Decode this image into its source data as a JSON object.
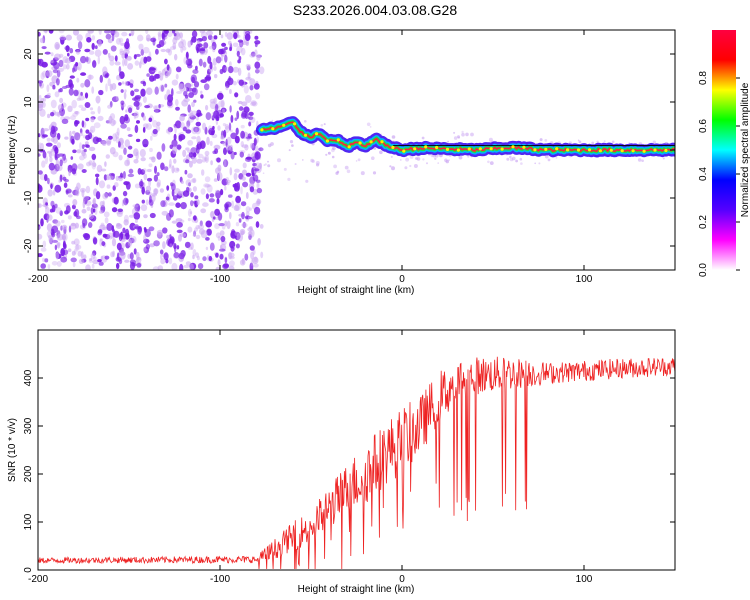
{
  "title": "S233.2026.004.03.08.G28",
  "colors": {
    "snr_line": "#ee2222",
    "dots_primary": "#7a1fe6",
    "dots_light": "#c9a3f2",
    "track_line": "#000000",
    "colormap": [
      "#ffffff",
      "#ff00ff",
      "#5500ff",
      "#0000ff",
      "#00ffff",
      "#00ff00",
      "#ffff00",
      "#ff0000",
      "#ff0040"
    ]
  },
  "chart_data": [
    {
      "type": "heatmap",
      "xlabel": "Height of straight line (km)",
      "ylabel": "Frequency (Hz)",
      "xlim": [
        -200,
        150
      ],
      "ylim": [
        -25,
        25
      ],
      "xticks": [
        "-200",
        "-100",
        "0",
        "100"
      ],
      "yticks": [
        "-20",
        "-10",
        "0",
        "10",
        "20"
      ],
      "noise_region_x": [
        -200,
        -77
      ],
      "track": {
        "x": [
          -77,
          -70,
          -60,
          -55,
          -50,
          -45,
          -40,
          -35,
          -30,
          -25,
          -20,
          -15,
          -10,
          -5,
          0,
          10,
          20,
          40,
          60,
          80,
          100,
          120,
          150
        ],
        "y": [
          4.2,
          4.5,
          5.7,
          3.5,
          2.8,
          3.5,
          1.8,
          2.0,
          0.6,
          1.6,
          0.6,
          2.4,
          1.2,
          0.5,
          0.0,
          0.4,
          0.3,
          0.0,
          0.5,
          0.0,
          0.0,
          0.0,
          0.0
        ]
      },
      "colorbar": {
        "label": "Normalized spectral amplitude",
        "range": [
          0,
          1
        ],
        "ticks": [
          "0.0",
          "0.2",
          "0.4",
          "0.6",
          "0.8"
        ]
      }
    },
    {
      "type": "line",
      "xlabel": "Height of straight line (km)",
      "ylabel": "SNR (10 * v/v)",
      "xlim": [
        -200,
        150
      ],
      "ylim": [
        0,
        500
      ],
      "xticks": [
        "-200",
        "-100",
        "0",
        "100"
      ],
      "yticks": [
        "0",
        "100",
        "200",
        "300",
        "400"
      ],
      "series": [
        {
          "name": "SNR",
          "trend": {
            "x": [
              -200,
              -80,
              -75,
              -60,
              -50,
              -40,
              -30,
              -20,
              -10,
              0,
              10,
              20,
              30,
              40,
              60,
              80,
              100,
              120,
              150
            ],
            "y": [
              20,
              22,
              30,
              70,
              90,
              130,
              170,
              200,
              240,
              270,
              300,
              360,
              390,
              405,
              410,
              410,
              415,
              420,
              425
            ]
          },
          "spread": {
            "x": [
              -200,
              -80,
              -75,
              -60,
              -40,
              -20,
              0,
              20,
              40,
              60,
              80,
              150
            ],
            "y": [
              12,
              15,
              35,
              60,
              90,
              130,
              140,
              110,
              80,
              70,
              45,
              40
            ]
          },
          "dropouts": {
            "x_range": [
              20,
              75
            ],
            "floor_y": 100
          }
        }
      ]
    }
  ]
}
